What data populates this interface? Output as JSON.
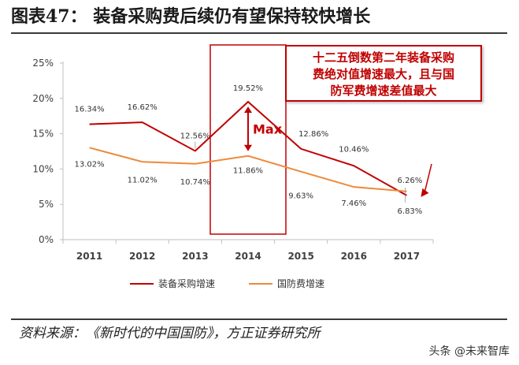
{
  "figure": {
    "title": "图表47：   装备采购费后续仍有望保持较快增长",
    "source": "资料来源：《新时代的中国国防》，方正证券研究所",
    "watermark": "头条 @未来智库"
  },
  "callout": {
    "lines": [
      "十二五倒数第二年装备采购",
      "费绝对值增速最大，且与国",
      "防军费增速差值最大"
    ]
  },
  "annotation": {
    "max_label": "Max",
    "highlight_year": "2014"
  },
  "colors": {
    "red_series": "#c00000",
    "orange_series": "#ed8a3a",
    "axis": "#bfbfbf"
  },
  "chart_data": {
    "type": "line",
    "title": "装备采购费后续仍有望保持较快增长",
    "xlabel": "",
    "ylabel": "",
    "categories": [
      "2011",
      "2012",
      "2013",
      "2014",
      "2015",
      "2016",
      "2017"
    ],
    "ylim": [
      0,
      25
    ],
    "yticks": [
      0,
      5,
      10,
      15,
      20,
      25
    ],
    "ytick_labels": [
      "0%",
      "5%",
      "10%",
      "15%",
      "20%",
      "25%"
    ],
    "legend_position": "bottom",
    "series": [
      {
        "name": "装备采购增速",
        "values": [
          16.34,
          16.62,
          12.56,
          19.52,
          12.86,
          10.46,
          6.26
        ],
        "labels": [
          "16.34%",
          "16.62%",
          "12.56%",
          "19.52%",
          "12.86%",
          "10.46%",
          "6.26%"
        ]
      },
      {
        "name": "国防费增速",
        "values": [
          13.02,
          11.02,
          10.74,
          11.86,
          9.63,
          7.46,
          6.83
        ],
        "labels": [
          "13.02%",
          "11.02%",
          "10.74%",
          "11.86%",
          "9.63%",
          "7.46%",
          "6.83%"
        ]
      }
    ]
  }
}
